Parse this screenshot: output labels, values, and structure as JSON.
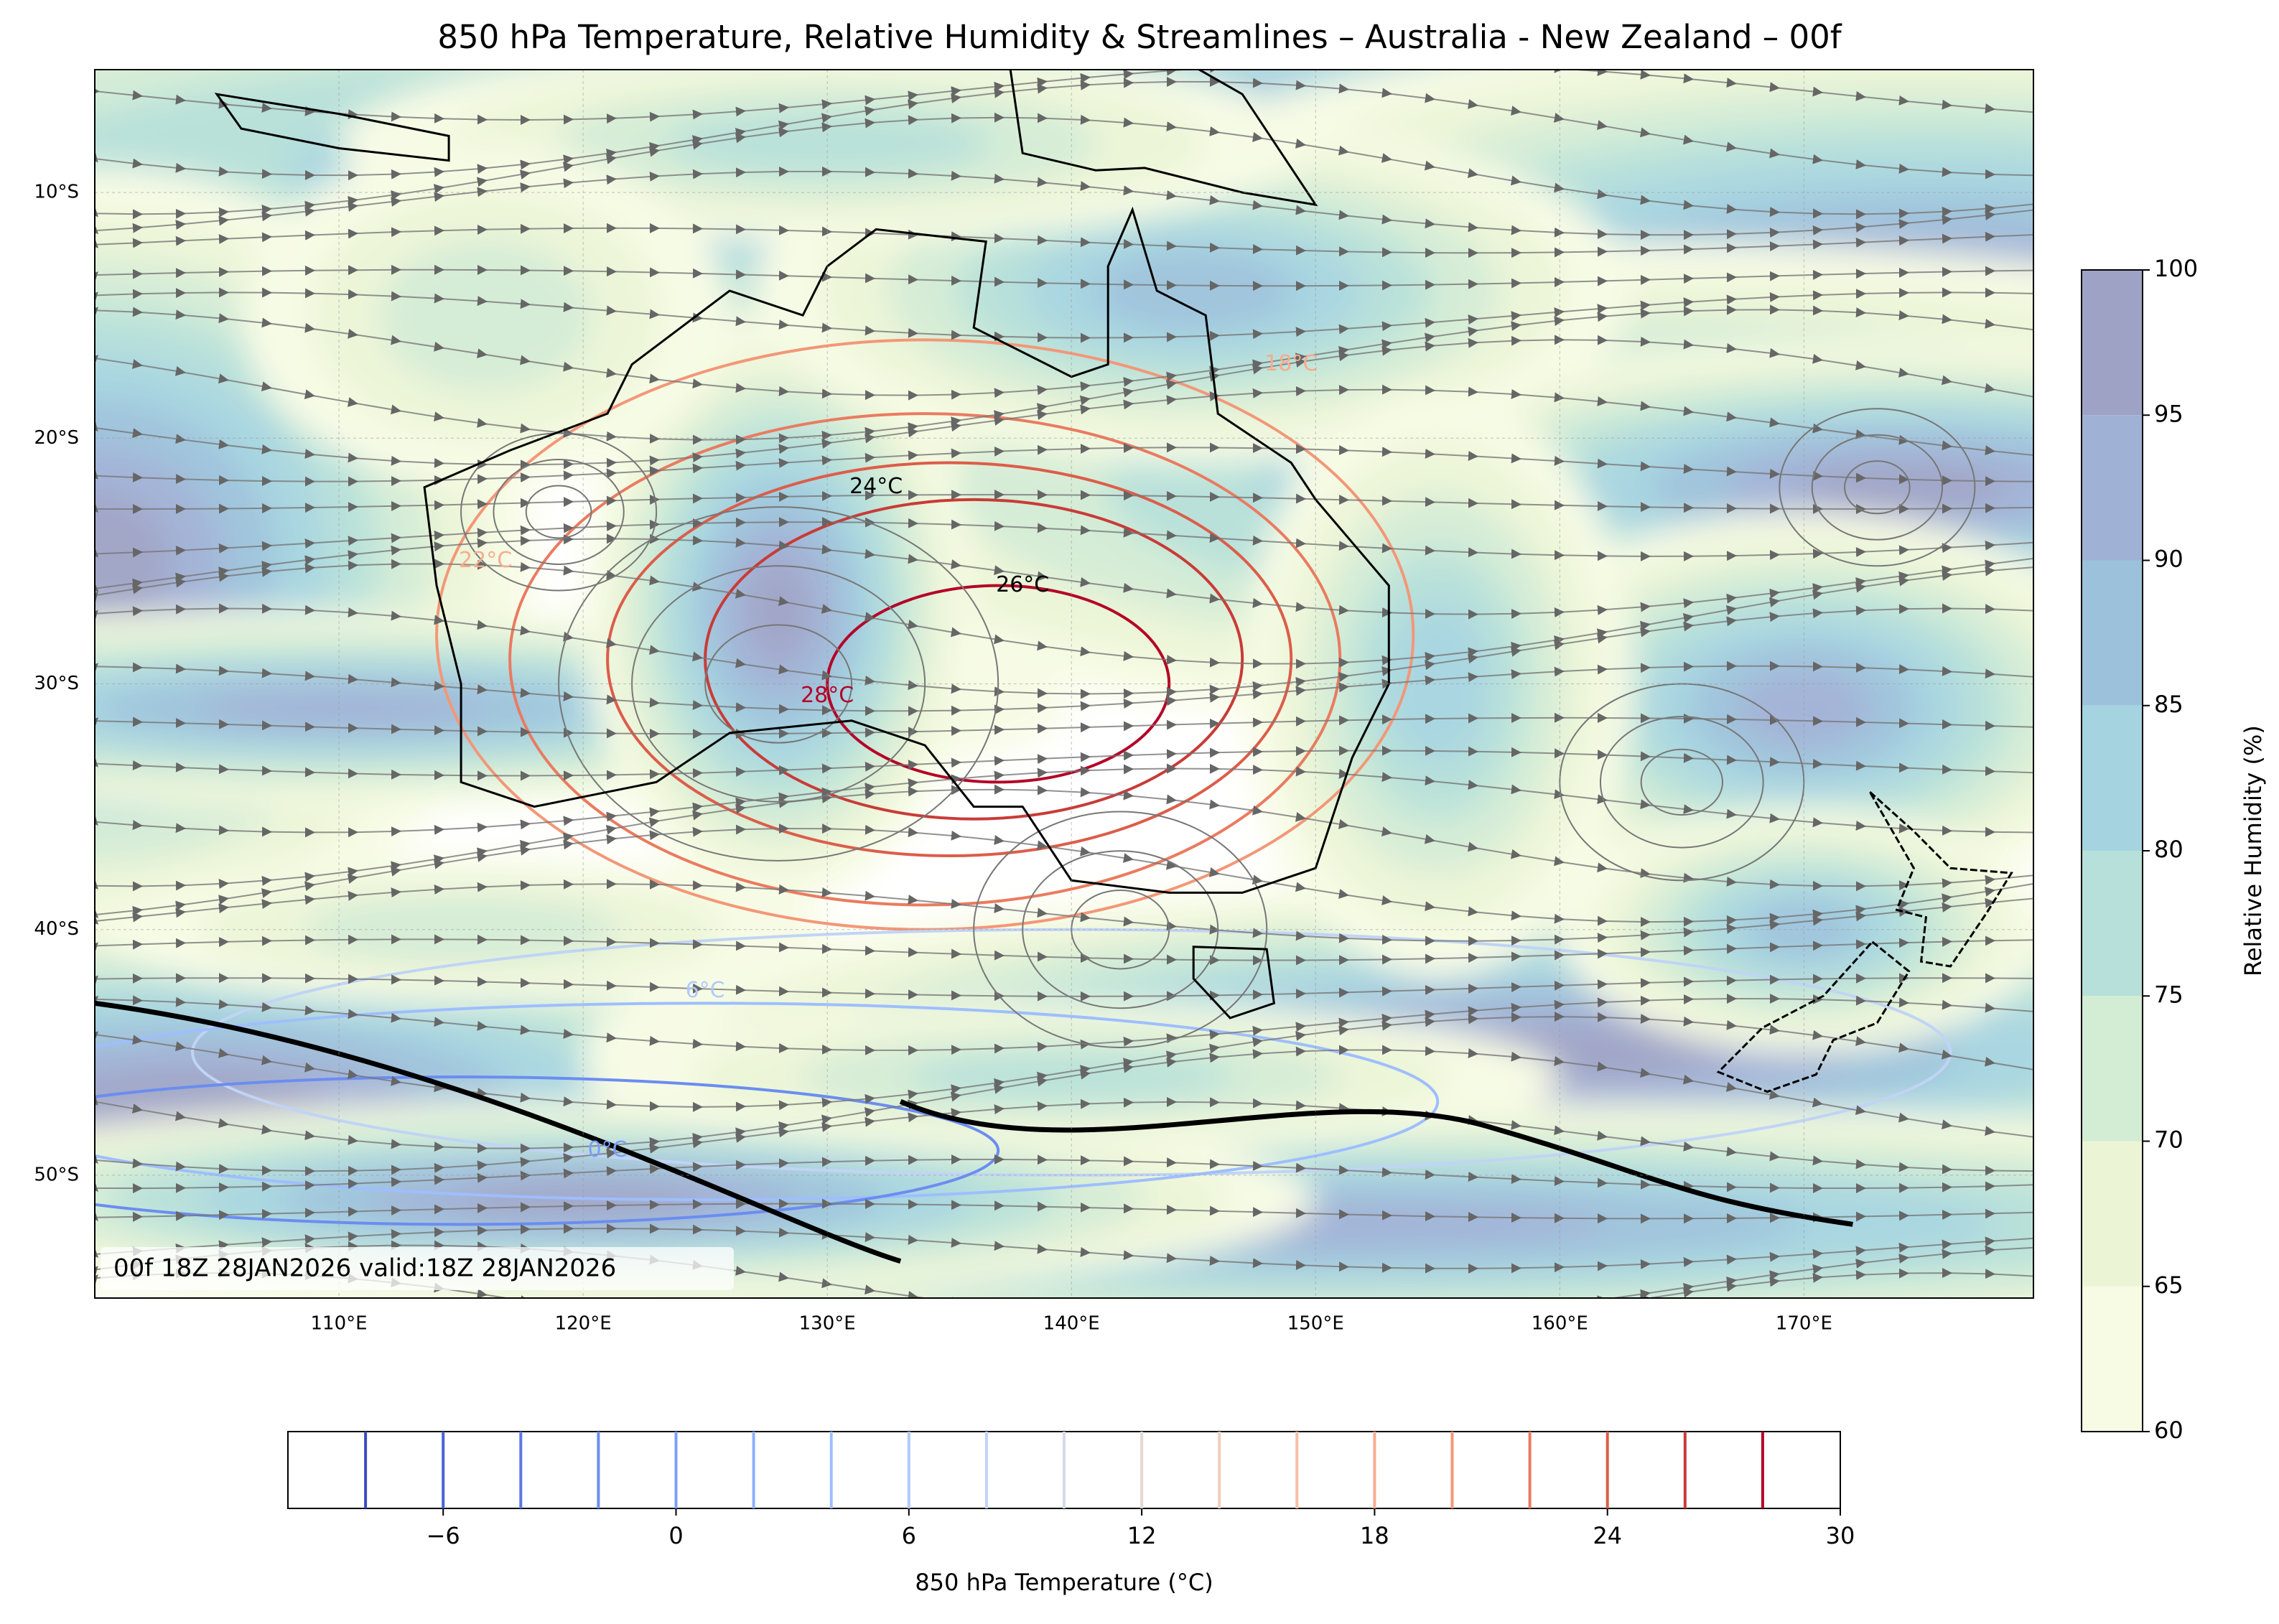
{
  "map": {
    "title": "850 hPa Temperature, Relative Humidity & Streamlines – Australia - New Zealand – 00f",
    "annotation": "00f 18Z 28JAN2026 valid:18Z 28JAN2026",
    "lon_range": [
      100,
      179.4
    ],
    "lat_range": [
      -55,
      -5
    ],
    "lon_ticks": [
      {
        "value": 110,
        "label": "110°E"
      },
      {
        "value": 120,
        "label": "120°E"
      },
      {
        "value": 130,
        "label": "130°E"
      },
      {
        "value": 140,
        "label": "140°E"
      },
      {
        "value": 150,
        "label": "150°E"
      },
      {
        "value": 160,
        "label": "160°E"
      },
      {
        "value": 170,
        "label": "170°E"
      }
    ],
    "lat_ticks": [
      {
        "value": -10,
        "label": "10°S"
      },
      {
        "value": -20,
        "label": "20°S"
      },
      {
        "value": -30,
        "label": "30°S"
      },
      {
        "value": -40,
        "label": "40°S"
      },
      {
        "value": -50,
        "label": "50°S"
      }
    ],
    "contour_labels": [
      "26°C",
      "24°C",
      "28°C",
      "22°C",
      "18°C",
      "6°C",
      "0°C"
    ]
  },
  "rh_colorbar": {
    "label": "Relative Humidity (%)",
    "levels": [
      60,
      65,
      70,
      75,
      80,
      85,
      90,
      95,
      100
    ],
    "colors": [
      "#f7fbe4",
      "#ebf5d6",
      "#d3ecd4",
      "#b6e0d9",
      "#a5d4e0",
      "#9cc2db",
      "#a0b1d6",
      "#9ea3c6"
    ],
    "ticks": [
      60,
      65,
      70,
      75,
      80,
      85,
      90,
      95,
      100
    ]
  },
  "temp_colorbar": {
    "label": "850 hPa Temperature (°C)",
    "range": [
      -10,
      30
    ],
    "levels": [
      -8,
      -6,
      -4,
      -2,
      0,
      2,
      4,
      6,
      8,
      10,
      12,
      14,
      16,
      18,
      20,
      22,
      24,
      26,
      28
    ],
    "colors": [
      "#3b4cc0",
      "#4a63d3",
      "#5a78e4",
      "#6b8df0",
      "#7b9ff9",
      "#8db0fe",
      "#9ebeff",
      "#afcafc",
      "#c0d4f5",
      "#d5dbe5",
      "#e5d8d1",
      "#f1cdba",
      "#f6bfa6",
      "#f7ac8e",
      "#f39778",
      "#ea7b60",
      "#dc5d4a",
      "#c93b37",
      "#b40426"
    ],
    "ticks": [
      {
        "value": -6,
        "label": "−6"
      },
      0,
      6,
      12,
      18,
      24,
      30
    ]
  }
}
